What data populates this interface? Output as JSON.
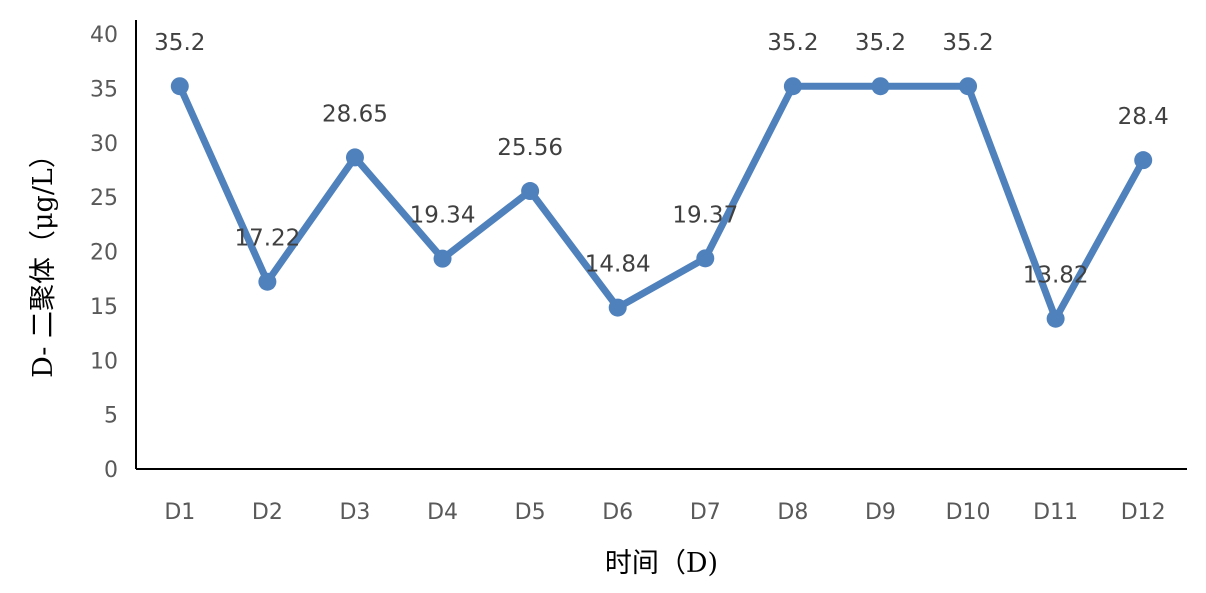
{
  "chart_data": {
    "type": "line",
    "categories": [
      "D1",
      "D2",
      "D3",
      "D4",
      "D5",
      "D6",
      "D7",
      "D8",
      "D9",
      "D10",
      "D11",
      "D12"
    ],
    "series": [
      {
        "values": [
          35.2,
          17.22,
          28.65,
          19.34,
          25.56,
          14.84,
          19.37,
          35.2,
          35.2,
          35.2,
          13.82,
          28.4
        ]
      }
    ],
    "data_labels": [
      "35.2",
      "17.22",
      "28.65",
      "19.34",
      "25.56",
      "14.84",
      "19.37",
      "35.2",
      "35.2",
      "35.2",
      "13.82",
      "28.4"
    ],
    "xlabel": "时间（D)",
    "ylabel": "D- 二聚体（μg/L）",
    "ylim": [
      0,
      40
    ],
    "yticks": [
      0,
      5,
      10,
      15,
      20,
      25,
      30,
      35,
      40
    ],
    "grid": false,
    "legend": "none",
    "colors": {
      "line": "#4f81bd",
      "axis": "#000000",
      "tick_text": "#595959",
      "label_text": "#404040"
    }
  }
}
